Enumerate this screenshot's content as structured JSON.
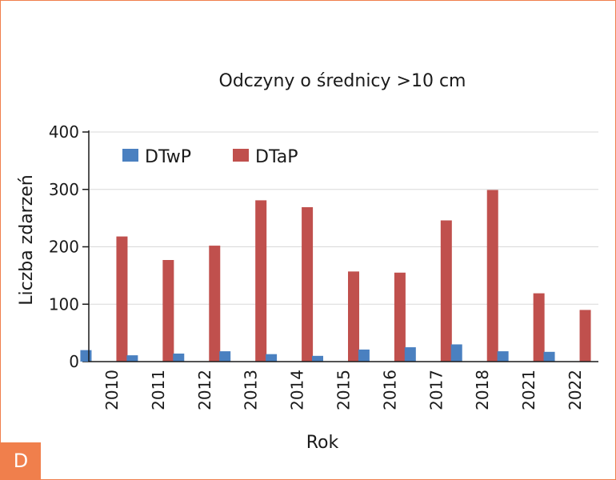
{
  "panel": {
    "letter": "D"
  },
  "colors": {
    "frame": "#f07f4c",
    "badge": "#f07f4c",
    "dtwp": "#4a80c0",
    "dtap": "#c0504d",
    "grid": "#d8d8d8",
    "axis": "#1a1a1a"
  },
  "chart_data": {
    "type": "bar",
    "title": "Odczyny o średnicy >10 cm",
    "xlabel": "Rok",
    "ylabel": "Liczba zdarzeń",
    "ylim": [
      0,
      400
    ],
    "yticks": [
      "0",
      "100",
      "200",
      "300",
      "400"
    ],
    "categories": [
      "2010",
      "2011",
      "2012",
      "2013",
      "2014",
      "2015",
      "2016",
      "2017",
      "2018",
      "2021",
      "2022"
    ],
    "series": [
      {
        "name": "DTwP",
        "values": [
          20,
          11,
          14,
          18,
          13,
          10,
          21,
          25,
          30,
          18,
          17
        ]
      },
      {
        "name": "DTaP",
        "values": [
          218,
          177,
          202,
          281,
          269,
          157,
          155,
          246,
          299,
          119,
          90
        ]
      }
    ],
    "legend": "top-left",
    "grid": true
  }
}
